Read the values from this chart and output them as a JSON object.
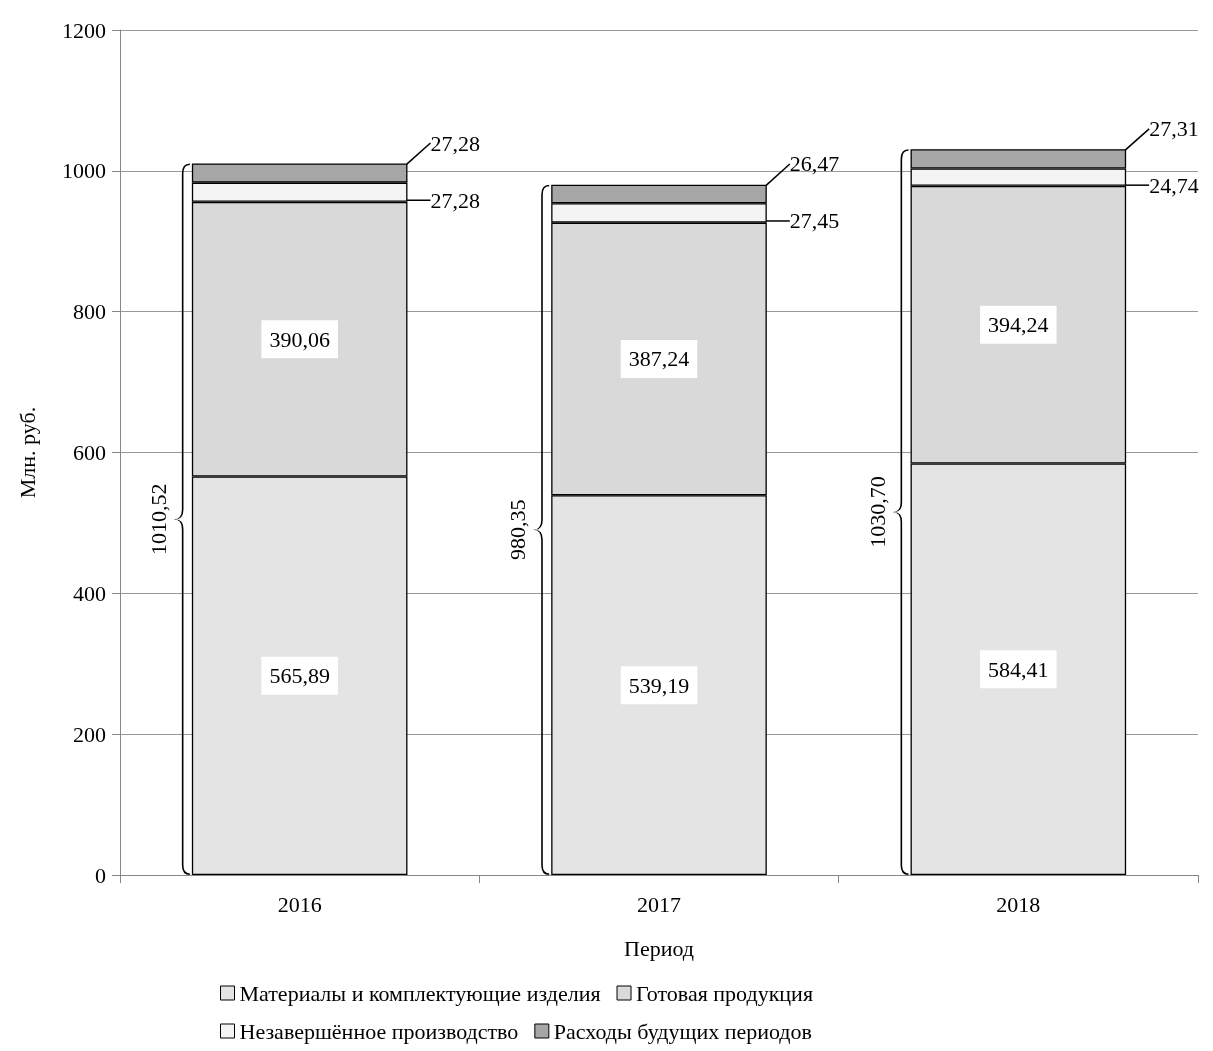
{
  "chart_data": {
    "type": "bar",
    "stacked": true,
    "categories": [
      "2016",
      "2017",
      "2018"
    ],
    "xlabel": "Период",
    "ylabel": "Млн. руб.",
    "ylim": [
      0,
      1200
    ],
    "yticks": [
      0,
      200,
      400,
      600,
      800,
      1000,
      1200
    ],
    "grid": "y",
    "legend": "bottom",
    "series": [
      {
        "name": "Материалы и комплектующие изделия",
        "color": "#e4e4e4",
        "values": [
          565.89,
          539.19,
          584.41
        ],
        "value_labels": [
          "565,89",
          "539,19",
          "584,41"
        ]
      },
      {
        "name": "Готовая продукция",
        "color": "#d9d9d9",
        "values": [
          390.06,
          387.24,
          394.24
        ],
        "value_labels": [
          "390,06",
          "387,24",
          "394,24"
        ]
      },
      {
        "name": "Незавершённое производство",
        "color": "#f4f4f4",
        "values": [
          27.28,
          27.45,
          24.74
        ],
        "value_labels": [
          "27,28",
          "27,45",
          "24,74"
        ]
      },
      {
        "name": "Расходы будущих периодов",
        "color": "#a6a6a6",
        "values": [
          27.28,
          26.47,
          27.31
        ],
        "value_labels": [
          "27,28",
          "26,47",
          "27,31"
        ]
      }
    ],
    "totals": [
      "1010,52",
      "980,35",
      "1030,70"
    ]
  }
}
